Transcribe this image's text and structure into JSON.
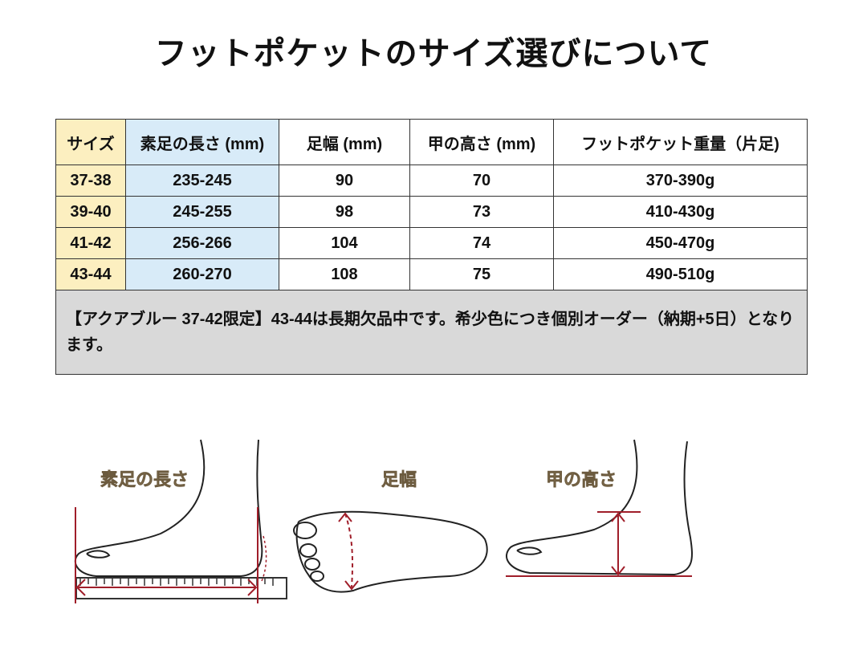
{
  "header": {
    "title": "フットポケットのサイズ選びについて"
  },
  "table": {
    "columns": [
      "サイズ",
      "素足の長さ (mm)",
      "足幅 (mm)",
      "甲の高さ (mm)",
      "フットポケット重量（片足)"
    ],
    "rows": [
      [
        "37-38",
        "235-245",
        "90",
        "70",
        "370-390g"
      ],
      [
        "39-40",
        "245-255",
        "98",
        "73",
        "410-430g"
      ],
      [
        "41-42",
        "256-266",
        "104",
        "74",
        "450-470g"
      ],
      [
        "43-44",
        "260-270",
        "108",
        "75",
        "490-510g"
      ]
    ],
    "note": "【アクアブルー 37-42限定】43-44は長期欠品中です。希少色につき個別オーダー（納期+5日）となります。"
  },
  "figures": [
    {
      "label": "素足の長さ"
    },
    {
      "label": "足幅"
    },
    {
      "label": "甲の高さ"
    }
  ]
}
